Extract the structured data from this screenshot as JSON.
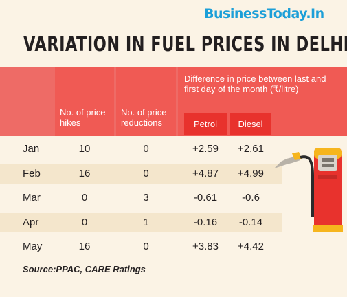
{
  "brand": "BusinessToday.In",
  "title": "VARIATION IN FUEL PRICES IN DELHI",
  "headers": {
    "hikes": "No. of price hikes",
    "reductions": "No. of price reductions",
    "difference": "Difference in price between last and first day of the month (₹/litre)",
    "petrol": "Petrol",
    "diesel": "Diesel"
  },
  "chart_data": {
    "type": "table",
    "title": "VARIATION IN FUEL PRICES IN DELHI",
    "columns": [
      "",
      "No. of price hikes",
      "No. of price reductions",
      "Petrol",
      "Diesel"
    ],
    "rows": [
      {
        "month": "Jan",
        "hikes": "10",
        "reductions": "0",
        "petrol": "+2.59",
        "diesel": "+2.61"
      },
      {
        "month": "Feb",
        "hikes": "16",
        "reductions": "0",
        "petrol": "+4.87",
        "diesel": "+4.99"
      },
      {
        "month": "Mar",
        "hikes": "0",
        "reductions": "3",
        "petrol": "-0.61",
        "diesel": "-0.6"
      },
      {
        "month": "Apr",
        "hikes": "0",
        "reductions": "1",
        "petrol": "-0.16",
        "diesel": "-0.14"
      },
      {
        "month": "May",
        "hikes": "16",
        "reductions": "0",
        "petrol": "+3.83",
        "diesel": "+4.42"
      }
    ]
  },
  "source": "Source:PPAC, CARE Ratings",
  "colors": {
    "brand": "#1c9fd8",
    "header": "#f05a54",
    "subheader": "#e8322d",
    "background": "#fbf3e5",
    "row_shade": "#f4e6cc"
  },
  "icons": [
    "fuel-pump-icon"
  ]
}
